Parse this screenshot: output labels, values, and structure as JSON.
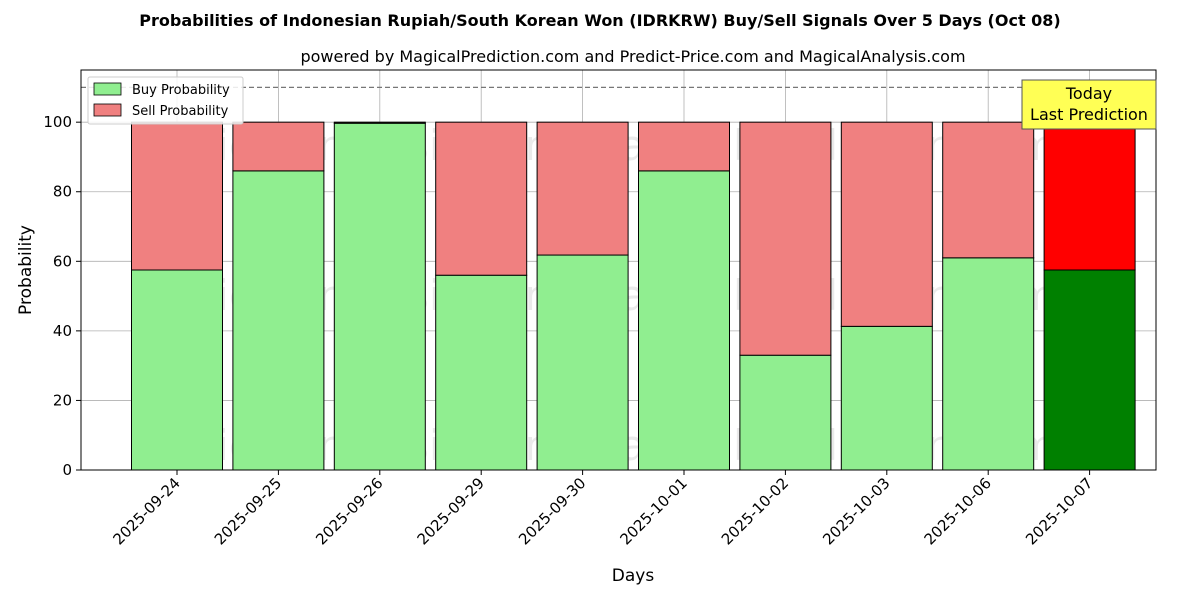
{
  "chart_data": {
    "type": "bar",
    "title": "Probabilities of Indonesian Rupiah/South Korean Won (IDRKRW) Buy/Sell Signals Over 5 Days (Oct 08)",
    "subtitle": "powered by MagicalPrediction.com and Predict-Price.com and MagicalAnalysis.com",
    "xlabel": "Days",
    "ylabel": "Probability",
    "ylim": [
      0,
      115
    ],
    "yticks": [
      0,
      20,
      40,
      60,
      80,
      100
    ],
    "grid": true,
    "legend_position": "top-left",
    "reference_line": 110,
    "categories": [
      "2025-09-24",
      "2025-09-25",
      "2025-09-26",
      "2025-09-29",
      "2025-09-30",
      "2025-10-01",
      "2025-10-02",
      "2025-10-03",
      "2025-10-06",
      "2025-10-07"
    ],
    "series": [
      {
        "name": "Buy Probability",
        "values": [
          57.5,
          86,
          99.7,
          56,
          61.8,
          86,
          33,
          41.3,
          61,
          57.5
        ]
      },
      {
        "name": "Sell Probability",
        "values": [
          42.5,
          14,
          0.3,
          44,
          38.2,
          14,
          67,
          58.7,
          39,
          42.5
        ]
      }
    ],
    "colors": {
      "buy": "#90ee90",
      "sell": "#f08080",
      "buy_highlight": "#008000",
      "sell_highlight": "#ff0000",
      "annotation_bg": "#ffff55"
    },
    "highlight_index": 9,
    "annotation": {
      "line1": "Today",
      "line2": "Last Prediction"
    },
    "watermarks": [
      "MagicalAnalysis.com",
      "MagicalPrediction.com"
    ]
  }
}
